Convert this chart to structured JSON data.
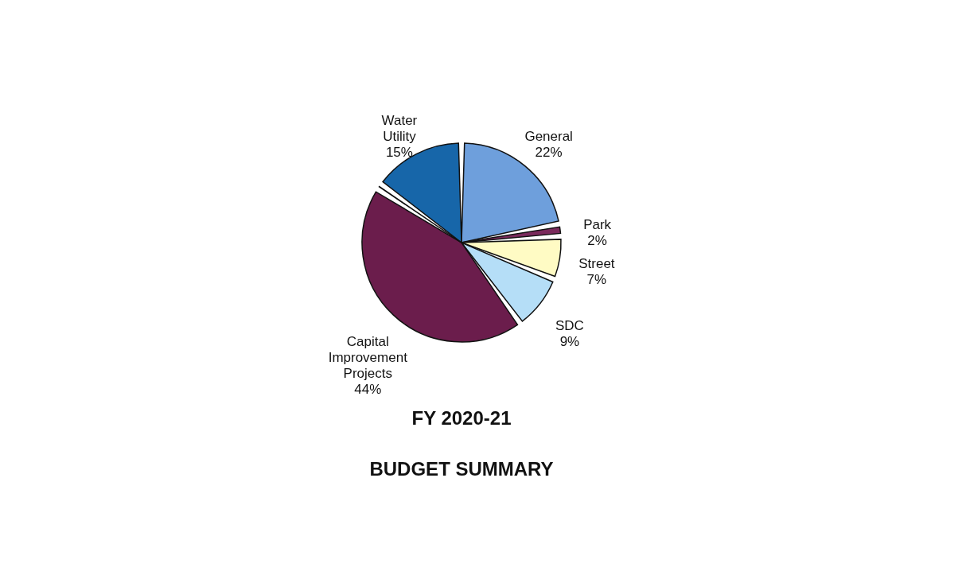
{
  "chart_data": {
    "type": "pie",
    "title": "FY 2020-21",
    "subtitle": "BUDGET SUMMARY",
    "categories": [
      "General",
      "Park",
      "Street",
      "SDC",
      "Capital Improvement Projects",
      null,
      "Water Utility"
    ],
    "values": [
      22,
      2,
      7,
      9,
      44,
      1,
      15
    ],
    "value_labels": [
      "22%",
      "2%",
      "7%",
      "9%",
      "44%",
      null,
      "15%"
    ],
    "colors": [
      "#6e9fdc",
      "#7a2a5c",
      "#fffbc4",
      "#b5def7",
      "#6b1d4c",
      "#35507f",
      "#1766a9"
    ],
    "legend": false
  }
}
